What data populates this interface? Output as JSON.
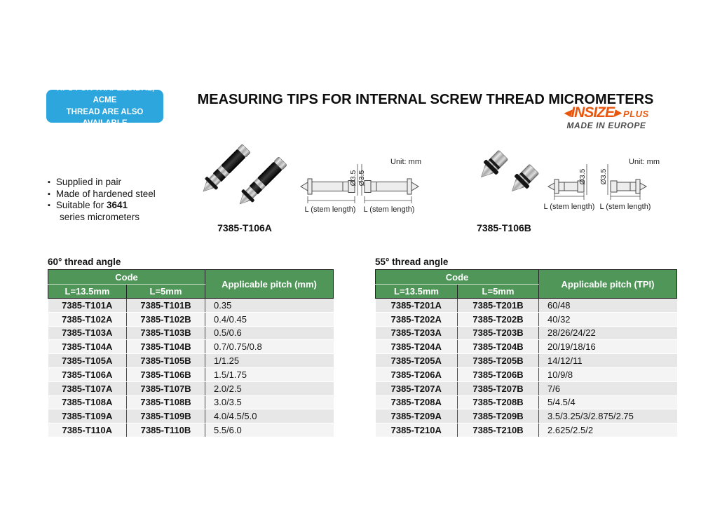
{
  "badge": {
    "line1": "TIPS FOR TRAPEZOIDAL, ACME",
    "line2": "THREAD ARE ALSO AVAILABLE"
  },
  "title": "MEASURING TIPS FOR INTERNAL SCREW THREAD MICROMETERS",
  "brand": {
    "left_arrow": "◀",
    "name": "INSIZE",
    "right_arrow": "▶",
    "suffix": "PLUS",
    "tagline": "MADE IN EUROPE",
    "orange": "#e9560d"
  },
  "features": {
    "item1": "Supplied in pair",
    "item2": "Made of hardened steel",
    "item3_prefix": "Suitable for ",
    "item3_bold": "3641",
    "item3_line2": "series micrometers"
  },
  "products": {
    "a_label": "7385-T106A",
    "b_label": "7385-T106B"
  },
  "diagram": {
    "unit_label": "Unit: mm",
    "dia_label": "Ø3.5",
    "stem_label": "L (stem length)"
  },
  "colors": {
    "header_green": "#509659",
    "badge_blue": "#2ca6dd",
    "row_odd": "#e7e7e7",
    "row_even": "#f4f4f4"
  },
  "tables": [
    {
      "title": "60° thread angle",
      "code_header": "Code",
      "col1": "L=13.5mm",
      "col2": "L=5mm",
      "pitch_header": "Applicable pitch (mm)",
      "rows": [
        [
          "7385-T101A",
          "7385-T101B",
          "0.35"
        ],
        [
          "7385-T102A",
          "7385-T102B",
          "0.4/0.45"
        ],
        [
          "7385-T103A",
          "7385-T103B",
          "0.5/0.6"
        ],
        [
          "7385-T104A",
          "7385-T104B",
          "0.7/0.75/0.8"
        ],
        [
          "7385-T105A",
          "7385-T105B",
          "1/1.25"
        ],
        [
          "7385-T106A",
          "7385-T106B",
          "1.5/1.75"
        ],
        [
          "7385-T107A",
          "7385-T107B",
          "2.0/2.5"
        ],
        [
          "7385-T108A",
          "7385-T108B",
          "3.0/3.5"
        ],
        [
          "7385-T109A",
          "7385-T109B",
          "4.0/4.5/5.0"
        ],
        [
          "7385-T110A",
          "7385-T110B",
          "5.5/6.0"
        ]
      ]
    },
    {
      "title": "55° thread angle",
      "code_header": "Code",
      "col1": "L=13.5mm",
      "col2": "L=5mm",
      "pitch_header": "Applicable pitch (TPI)",
      "rows": [
        [
          "7385-T201A",
          "7385-T201B",
          "60/48"
        ],
        [
          "7385-T202A",
          "7385-T202B",
          "40/32"
        ],
        [
          "7385-T203A",
          "7385-T203B",
          "28/26/24/22"
        ],
        [
          "7385-T204A",
          "7385-T204B",
          "20/19/18/16"
        ],
        [
          "7385-T205A",
          "7385-T205B",
          "14/12/11"
        ],
        [
          "7385-T206A",
          "7385-T206B",
          "10/9/8"
        ],
        [
          "7385-T207A",
          "7385-T207B",
          "7/6"
        ],
        [
          "7385-T208A",
          "7385-T208B",
          "5/4.5/4"
        ],
        [
          "7385-T209A",
          "7385-T209B",
          "3.5/3.25/3/2.875/2.75"
        ],
        [
          "7385-T210A",
          "7385-T210B",
          "2.625/2.5/2"
        ]
      ]
    }
  ]
}
